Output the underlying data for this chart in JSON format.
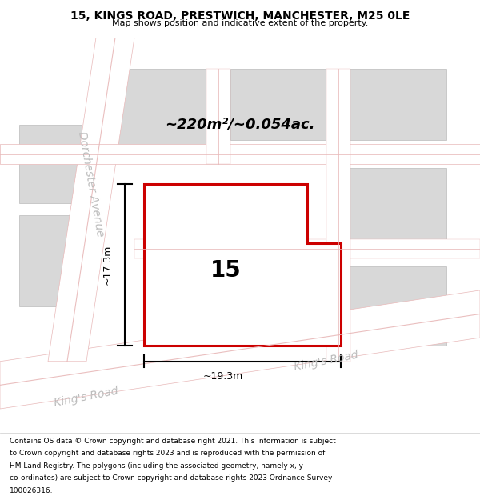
{
  "title_line1": "15, KINGS ROAD, PRESTWICH, MANCHESTER, M25 0LE",
  "title_line2": "Map shows position and indicative extent of the property.",
  "footer_lines": [
    "Contains OS data © Crown copyright and database right 2021. This information is subject",
    "to Crown copyright and database rights 2023 and is reproduced with the permission of",
    "HM Land Registry. The polygons (including the associated geometry, namely x, y",
    "co-ordinates) are subject to Crown copyright and database rights 2023 Ordnance Survey",
    "100026316."
  ],
  "map_bg": "#f2f2f2",
  "building_fill": "#d8d8d8",
  "building_edge": "#bbbbbb",
  "road_fill": "#ffffff",
  "road_line_color": "#e8b8b8",
  "highlight_stroke": "#cc0000",
  "highlight_fill": "#ffffff",
  "road_label_color": "#bbbbbb",
  "area_label": "~220m²/~0.054ac.",
  "plot_number": "15",
  "dim_width": "~19.3m",
  "dim_height": "~17.3m",
  "kings_road_label": "King's Road",
  "kings_road_label2": "King's Road",
  "dorchester_label": "Dorchester Avenue"
}
